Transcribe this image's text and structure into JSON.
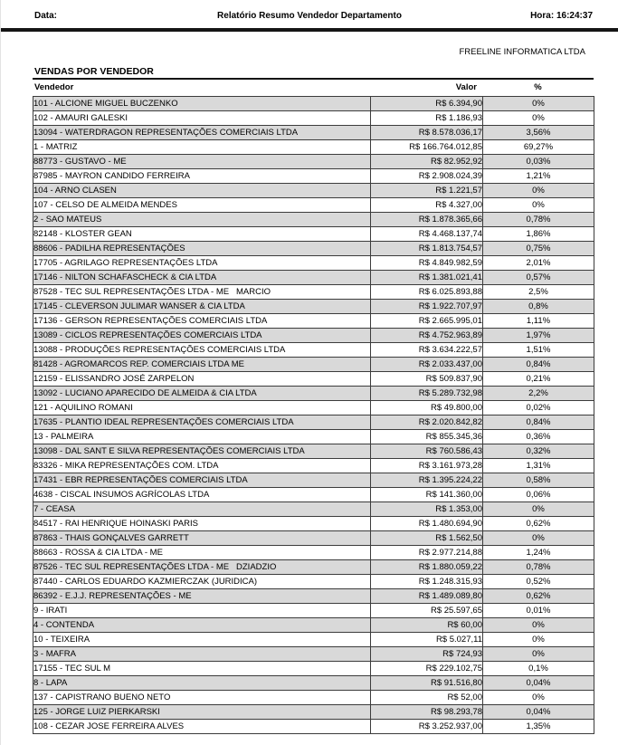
{
  "header": {
    "date_label": "Data:",
    "title": "Relatório Resumo Vendedor Departamento",
    "time_label": "Hora: 16:24:37",
    "company": "FREELINE INFORMATICA LTDA"
  },
  "section": {
    "title": "VENDAS POR VENDEDOR"
  },
  "table": {
    "columns": [
      "Vendedor",
      "Valor",
      "%"
    ],
    "rows": [
      {
        "vendedor": "101 - ALCIONE MIGUEL BUCZENKO",
        "valor": "R$ 6.394,90",
        "pct": "0%"
      },
      {
        "vendedor": "102 - AMAURI GALESKI",
        "valor": "R$ 1.186,93",
        "pct": "0%"
      },
      {
        "vendedor": "13094 - WATERDRAGON REPRESENTAÇÕES COMERCIAIS LTDA",
        "valor": "R$ 8.578.036,17",
        "pct": "3,56%"
      },
      {
        "vendedor": "1 - MATRIZ",
        "valor": "R$ 166.764.012,85",
        "pct": "69,27%"
      },
      {
        "vendedor": "88773 - GUSTAVO - ME",
        "valor": "R$ 82.952,92",
        "pct": "0,03%"
      },
      {
        "vendedor": "87985 - MAYRON CANDIDO FERREIRA",
        "valor": "R$ 2.908.024,39",
        "pct": "1,21%"
      },
      {
        "vendedor": "104 - ARNO CLASEN",
        "valor": "R$ 1.221,57",
        "pct": "0%"
      },
      {
        "vendedor": "107 - CELSO DE ALMEIDA MENDES",
        "valor": "R$ 4.327,00",
        "pct": "0%"
      },
      {
        "vendedor": "2 - SAO MATEUS",
        "valor": "R$ 1.878.365,66",
        "pct": "0,78%"
      },
      {
        "vendedor": "82148 - KLOSTER GEAN",
        "valor": "R$ 4.468.137,74",
        "pct": "1,86%"
      },
      {
        "vendedor": "88606 - PADILHA REPRESENTAÇÕES",
        "valor": "R$ 1.813.754,57",
        "pct": "0,75%"
      },
      {
        "vendedor": "17705 - AGRILAGO REPRESENTAÇÕES LTDA",
        "valor": "R$ 4.849.982,59",
        "pct": "2,01%"
      },
      {
        "vendedor": "17146 - NILTON SCHAFASCHECK & CIA LTDA",
        "valor": "R$ 1.381.021,41",
        "pct": "0,57%"
      },
      {
        "vendedor": "87528 - TEC SUL REPRESENTAÇÕES LTDA - ME   MARCIO",
        "valor": "R$ 6.025.893,88",
        "pct": "2,5%"
      },
      {
        "vendedor": "17145 - CLEVERSON JULIMAR WANSER & CIA LTDA",
        "valor": "R$ 1.922.707,97",
        "pct": "0,8%"
      },
      {
        "vendedor": "17136 - GERSON REPRESENTAÇÕES COMERCIAIS LTDA",
        "valor": "R$ 2.665.995,01",
        "pct": "1,11%"
      },
      {
        "vendedor": "13089 - CICLOS REPRESENTAÇÕES COMERCIAIS LTDA",
        "valor": "R$ 4.752.963,89",
        "pct": "1,97%"
      },
      {
        "vendedor": "13088 - PRODUÇÕES REPRESENTAÇÕES COMERCIAIS LTDA",
        "valor": "R$ 3.634.222,57",
        "pct": "1,51%"
      },
      {
        "vendedor": "81428 - AGROMARCOS REP. COMERCIAIS LTDA ME",
        "valor": "R$ 2.033.437,00",
        "pct": "0,84%"
      },
      {
        "vendedor": "12159 - ELISSANDRO JOSÉ ZARPELON",
        "valor": "R$ 509.837,90",
        "pct": "0,21%"
      },
      {
        "vendedor": "13092 - LUCIANO APARECIDO DE ALMEIDA & CIA LTDA",
        "valor": "R$ 5.289.732,98",
        "pct": "2,2%"
      },
      {
        "vendedor": "121 - AQUILINO ROMANI",
        "valor": "R$ 49.800,00",
        "pct": "0,02%"
      },
      {
        "vendedor": "17635 - PLANTIO IDEAL REPRESENTAÇÕES COMERCIAIS LTDA",
        "valor": "R$ 2.020.842,82",
        "pct": "0,84%"
      },
      {
        "vendedor": "13 - PALMEIRA",
        "valor": "R$ 855.345,36",
        "pct": "0,36%"
      },
      {
        "vendedor": "13098 - DAL SANT E SILVA REPRESENTAÇÕES COMERCIAIS LTDA",
        "valor": "R$ 760.586,43",
        "pct": "0,32%"
      },
      {
        "vendedor": "83326 - MIKA REPRESENTAÇÕES COM. LTDA",
        "valor": "R$ 3.161.973,28",
        "pct": "1,31%"
      },
      {
        "vendedor": "17431 - EBR REPRESENTAÇÕES COMERCIAIS LTDA",
        "valor": "R$ 1.395.224,22",
        "pct": "0,58%"
      },
      {
        "vendedor": "4638 - CISCAL INSUMOS AGRÍCOLAS LTDA",
        "valor": "R$ 141.360,00",
        "pct": "0,06%"
      },
      {
        "vendedor": "7 - CEASA",
        "valor": "R$ 1.353,00",
        "pct": "0%"
      },
      {
        "vendedor": "84517 - RAI HENRIQUE HOINASKI PARIS",
        "valor": "R$ 1.480.694,90",
        "pct": "0,62%"
      },
      {
        "vendedor": "87863 - THAIS GONÇALVES GARRETT",
        "valor": "R$ 1.562,50",
        "pct": "0%"
      },
      {
        "vendedor": "88663 - ROSSA & CIA LTDA - ME",
        "valor": "R$ 2.977.214,88",
        "pct": "1,24%"
      },
      {
        "vendedor": "87526 - TEC SUL REPRESENTAÇÕES LTDA - ME   DZIADZIO",
        "valor": "R$ 1.880.059,22",
        "pct": "0,78%"
      },
      {
        "vendedor": "87440 - CARLOS EDUARDO KAZMIERCZAK (JURIDICA)",
        "valor": "R$ 1.248.315,93",
        "pct": "0,52%"
      },
      {
        "vendedor": "86392 - E.J.J. REPRESENTAÇÕES - ME",
        "valor": "R$ 1.489.089,80",
        "pct": "0,62%"
      },
      {
        "vendedor": "9 - IRATI",
        "valor": "R$ 25.597,65",
        "pct": "0,01%"
      },
      {
        "vendedor": "4 - CONTENDA",
        "valor": "R$ 60,00",
        "pct": "0%"
      },
      {
        "vendedor": "10 - TEIXEIRA",
        "valor": "R$ 5.027,11",
        "pct": "0%"
      },
      {
        "vendedor": "3 - MAFRA",
        "valor": "R$ 724,93",
        "pct": "0%"
      },
      {
        "vendedor": "17155 - TEC SUL M",
        "valor": "R$ 229.102,75",
        "pct": "0,1%"
      },
      {
        "vendedor": "8 - LAPA",
        "valor": "R$ 91.516,80",
        "pct": "0,04%"
      },
      {
        "vendedor": "137 - CAPISTRANO BUENO NETO",
        "valor": "R$ 52,00",
        "pct": "0%"
      },
      {
        "vendedor": "125 - JORGE LUIZ PIERKARSKI",
        "valor": "R$ 98.293,78",
        "pct": "0,04%"
      },
      {
        "vendedor": "108 - CEZAR JOSE FERREIRA ALVES",
        "valor": "R$ 3.252.937,00",
        "pct": "1,35%"
      }
    ]
  },
  "colors": {
    "row_alt": "#d9d9d9",
    "grid_border": "#3c3c3c",
    "rule": "#151515"
  }
}
